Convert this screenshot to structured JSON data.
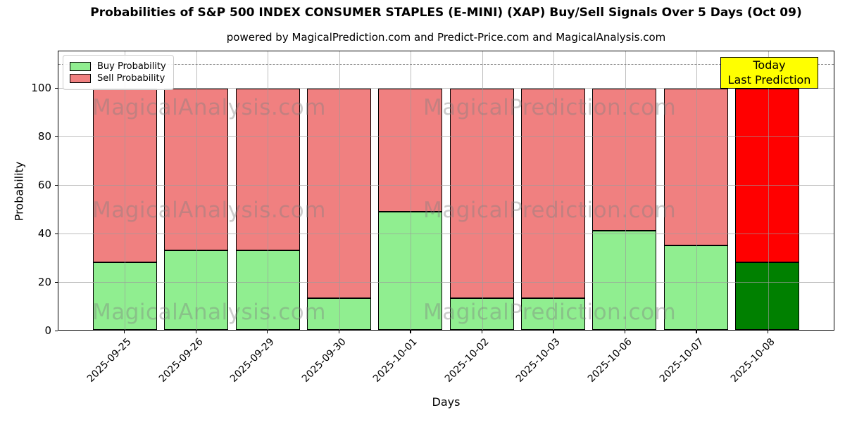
{
  "title": "Probabilities of S&P 500 INDEX CONSUMER STAPLES (E-MINI) (XAP) Buy/Sell Signals Over 5 Days (Oct 09)",
  "subtitle": "powered by MagicalPrediction.com and Predict-Price.com and MagicalAnalysis.com",
  "chart_data": {
    "type": "bar",
    "stacked": true,
    "xlabel": "Days",
    "ylabel": "Probability",
    "ylim": [
      0,
      115.4
    ],
    "yticks": [
      0,
      20,
      40,
      60,
      80,
      100
    ],
    "grid": true,
    "dashed_line_y": 110,
    "categories": [
      "2025-09-25",
      "2025-09-26",
      "2025-09-29",
      "2025-09-30",
      "2025-10-01",
      "2025-10-02",
      "2025-10-03",
      "2025-10-06",
      "2025-10-07",
      "2025-10-08"
    ],
    "series": [
      {
        "name": "Buy Probability",
        "values": [
          28,
          33,
          33,
          13,
          49,
          13,
          13,
          41,
          35,
          28
        ],
        "color": "#90EE90",
        "today_color": "#008000"
      },
      {
        "name": "Sell Probability",
        "values": [
          72,
          67,
          67,
          87,
          51,
          87,
          87,
          59,
          65,
          72
        ],
        "color": "#F08080",
        "today_color": "#FF0000"
      }
    ],
    "legend_position": "upper left",
    "annotation": {
      "line1": "Today",
      "line2": "Last Prediction",
      "bg_color": "#FFFF00"
    },
    "watermarks": {
      "left": "MagicalAnalysis.com",
      "right": "MagicalPrediction.com"
    }
  }
}
